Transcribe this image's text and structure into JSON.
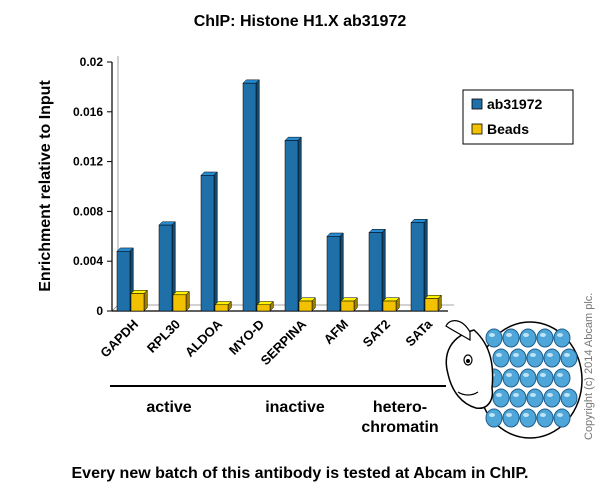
{
  "chart_data": {
    "type": "bar",
    "title": "ChIP: Histone H1.X ab31972",
    "ylabel": "Enrichment relative to Input",
    "xlabel": "",
    "ylim": [
      0,
      0.02
    ],
    "yticks": [
      "0",
      "0.004",
      "0.008",
      "0.012",
      "0.016",
      "0.02"
    ],
    "categories": [
      "GAPDH",
      "RPL30",
      "ALDOA",
      "MYO-D",
      "SERPINA",
      "AFM",
      "SAT2",
      "SATa"
    ],
    "series": [
      {
        "name": "ab31972",
        "values": [
          0.0048,
          0.0069,
          0.0109,
          0.0183,
          0.0137,
          0.006,
          0.0063,
          0.0071
        ],
        "color": "#1F6FA8"
      },
      {
        "name": "Beads",
        "values": [
          0.0014,
          0.0013,
          0.0005,
          0.0005,
          0.0008,
          0.0008,
          0.0008,
          0.001
        ],
        "color": "#F2C200"
      }
    ],
    "groups": [
      {
        "label": "active",
        "lines": [
          "active"
        ],
        "from": 0,
        "to": 2
      },
      {
        "label": "inactive",
        "lines": [
          "inactive"
        ],
        "from": 3,
        "to": 5
      },
      {
        "label": "hetero-chromatin",
        "lines": [
          "hetero-",
          "chromatin"
        ],
        "from": 6,
        "to": 7
      }
    ],
    "legend": "right",
    "grid": false
  },
  "footer": "Every new batch of this antibody is tested at Abcam in ChIP.",
  "copyright": "Copyright (c) 2014 Abcam plc.",
  "colors": {
    "plot_bg": "#FFFFFF",
    "axis": "#000000"
  }
}
